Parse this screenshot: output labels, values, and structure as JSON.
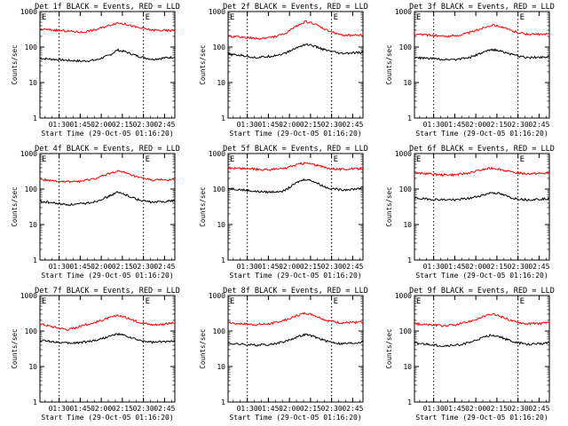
{
  "colors": {
    "events": "#000000",
    "lld": "#ff0000",
    "axis": "#000000",
    "marker": "#000000"
  },
  "chart_data": [
    {
      "type": "line",
      "title": "Det 1f BLACK = Events, RED = LLD",
      "xlabel": "Start Time (29-Oct-05 01:16:20)",
      "ylabel": "Counts/sec",
      "y_scale": "log",
      "ylim": [
        1,
        1000
      ],
      "yticks": [
        "1",
        "10",
        "100",
        "1000"
      ],
      "xticks": [
        "01:30",
        "01:45",
        "02:00",
        "02:15",
        "02:30",
        "02:45"
      ],
      "xlim_minutes": [
        0,
        96
      ],
      "marker_lines_at": [
        "01:30",
        "02:30"
      ],
      "corner_labels": {
        "left": "E",
        "right": "E"
      },
      "x": [
        0,
        10,
        20,
        30,
        40,
        50,
        55,
        60,
        70,
        80,
        90,
        96
      ],
      "series": [
        {
          "name": "Events",
          "color": "#000000",
          "values": [
            48,
            45,
            42,
            40,
            43,
            60,
            82,
            75,
            55,
            45,
            50,
            52
          ]
        },
        {
          "name": "LLD",
          "color": "#ff0000",
          "values": [
            320,
            300,
            280,
            260,
            310,
            420,
            480,
            450,
            350,
            300,
            290,
            295
          ]
        }
      ]
    },
    {
      "type": "line",
      "title": "Det 2f BLACK = Events, RED = LLD",
      "xlabel": "Start Time (29-Oct-05 01:16:20)",
      "ylabel": "Counts/sec",
      "y_scale": "log",
      "ylim": [
        1,
        1000
      ],
      "yticks": [
        "1",
        "10",
        "100",
        "1000"
      ],
      "xticks": [
        "01:30",
        "01:45",
        "02:00",
        "02:15",
        "02:30",
        "02:45"
      ],
      "xlim_minutes": [
        0,
        96
      ],
      "marker_lines_at": [
        "01:30",
        "02:30"
      ],
      "corner_labels": {
        "left": "E",
        "right": "E"
      },
      "x": [
        0,
        10,
        20,
        30,
        40,
        50,
        55,
        60,
        70,
        80,
        90,
        96
      ],
      "series": [
        {
          "name": "Events",
          "color": "#000000",
          "values": [
            62,
            58,
            50,
            55,
            65,
            100,
            120,
            110,
            80,
            65,
            68,
            70
          ]
        },
        {
          "name": "LLD",
          "color": "#ff0000",
          "values": [
            200,
            190,
            170,
            185,
            230,
            420,
            520,
            470,
            300,
            220,
            215,
            220
          ]
        }
      ]
    },
    {
      "type": "line",
      "title": "Det 3f BLACK = Events, RED = LLD",
      "xlabel": "Start Time (29-Oct-05 01:16:20)",
      "ylabel": "Counts/sec",
      "y_scale": "log",
      "ylim": [
        1,
        1000
      ],
      "yticks": [
        "1",
        "10",
        "100",
        "1000"
      ],
      "xticks": [
        "01:30",
        "01:45",
        "02:00",
        "02:15",
        "02:30",
        "02:45"
      ],
      "xlim_minutes": [
        0,
        96
      ],
      "marker_lines_at": [
        "01:30",
        "02:30"
      ],
      "corner_labels": {
        "left": "E",
        "right": "E"
      },
      "x": [
        0,
        10,
        20,
        30,
        40,
        50,
        55,
        60,
        70,
        80,
        90,
        96
      ],
      "series": [
        {
          "name": "Events",
          "color": "#000000",
          "values": [
            50,
            48,
            45,
            45,
            52,
            72,
            85,
            80,
            60,
            50,
            52,
            55
          ]
        },
        {
          "name": "LLD",
          "color": "#ff0000",
          "values": [
            230,
            220,
            200,
            210,
            260,
            360,
            420,
            390,
            280,
            230,
            225,
            230
          ]
        }
      ]
    },
    {
      "type": "line",
      "title": "Det 4f BLACK = Events, RED = LLD",
      "xlabel": "Start Time (29-Oct-05 01:16:20)",
      "ylabel": "Counts/sec",
      "y_scale": "log",
      "ylim": [
        1,
        1000
      ],
      "yticks": [
        "1",
        "10",
        "100",
        "1000"
      ],
      "xticks": [
        "01:30",
        "01:45",
        "02:00",
        "02:15",
        "02:30",
        "02:45"
      ],
      "xlim_minutes": [
        0,
        96
      ],
      "marker_lines_at": [
        "01:30",
        "02:30"
      ],
      "corner_labels": {
        "left": "E",
        "right": "E"
      },
      "x": [
        0,
        10,
        20,
        30,
        40,
        50,
        55,
        60,
        70,
        80,
        90,
        96
      ],
      "series": [
        {
          "name": "Events",
          "color": "#000000",
          "values": [
            45,
            40,
            36,
            38,
            45,
            65,
            80,
            72,
            50,
            42,
            45,
            48
          ]
        },
        {
          "name": "LLD",
          "color": "#ff0000",
          "values": [
            190,
            170,
            160,
            165,
            200,
            280,
            320,
            290,
            210,
            180,
            180,
            185
          ]
        }
      ]
    },
    {
      "type": "line",
      "title": "Det 5f BLACK = Events, RED = LLD",
      "xlabel": "Start Time (29-Oct-05 01:16:20)",
      "ylabel": "Counts/sec",
      "y_scale": "log",
      "ylim": [
        1,
        1000
      ],
      "yticks": [
        "1",
        "10",
        "100",
        "1000"
      ],
      "xticks": [
        "01:30",
        "01:45",
        "02:00",
        "02:15",
        "02:30",
        "02:45"
      ],
      "xlim_minutes": [
        0,
        96
      ],
      "marker_lines_at": [
        "01:30",
        "02:30"
      ],
      "corner_labels": {
        "left": "E",
        "right": "E"
      },
      "x": [
        0,
        10,
        20,
        30,
        40,
        50,
        55,
        60,
        70,
        80,
        90,
        96
      ],
      "series": [
        {
          "name": "Events",
          "color": "#000000",
          "values": [
            105,
            95,
            85,
            82,
            90,
            160,
            190,
            170,
            110,
            95,
            100,
            110
          ]
        },
        {
          "name": "LLD",
          "color": "#ff0000",
          "values": [
            390,
            380,
            360,
            350,
            380,
            500,
            540,
            500,
            390,
            360,
            370,
            380
          ]
        }
      ]
    },
    {
      "type": "line",
      "title": "Det 6f BLACK = Events, RED = LLD",
      "xlabel": "Start Time (29-Oct-05 01:16:20)",
      "ylabel": "Counts/sec",
      "y_scale": "log",
      "ylim": [
        1,
        1000
      ],
      "yticks": [
        "1",
        "10",
        "100",
        "1000"
      ],
      "xticks": [
        "01:30",
        "01:45",
        "02:00",
        "02:15",
        "02:30",
        "02:45"
      ],
      "xlim_minutes": [
        0,
        96
      ],
      "marker_lines_at": [
        "01:30",
        "02:30"
      ],
      "corner_labels": {
        "left": "E",
        "right": "E"
      },
      "x": [
        0,
        10,
        20,
        30,
        40,
        50,
        55,
        60,
        70,
        80,
        90,
        96
      ],
      "series": [
        {
          "name": "Events",
          "color": "#000000",
          "values": [
            55,
            52,
            50,
            50,
            55,
            70,
            80,
            75,
            55,
            50,
            52,
            55
          ]
        },
        {
          "name": "LLD",
          "color": "#ff0000",
          "values": [
            280,
            270,
            250,
            255,
            290,
            360,
            390,
            370,
            290,
            270,
            275,
            280
          ]
        }
      ]
    },
    {
      "type": "line",
      "title": "Det 7f BLACK = Events, RED = LLD",
      "xlabel": "Start Time (29-Oct-05 01:16:20)",
      "ylabel": "Counts/sec",
      "y_scale": "log",
      "ylim": [
        1,
        1000
      ],
      "yticks": [
        "1",
        "10",
        "100",
        "1000"
      ],
      "xticks": [
        "01:30",
        "01:45",
        "02:00",
        "02:15",
        "02:30",
        "02:45"
      ],
      "xlim_minutes": [
        0,
        96
      ],
      "marker_lines_at": [
        "01:30",
        "02:30"
      ],
      "corner_labels": {
        "left": "E",
        "right": "E"
      },
      "x": [
        0,
        10,
        20,
        30,
        40,
        50,
        55,
        60,
        70,
        80,
        90,
        96
      ],
      "series": [
        {
          "name": "Events",
          "color": "#000000",
          "values": [
            55,
            50,
            45,
            48,
            55,
            72,
            82,
            75,
            55,
            48,
            50,
            55
          ]
        },
        {
          "name": "LLD",
          "color": "#ff0000",
          "values": [
            160,
            130,
            110,
            140,
            180,
            240,
            270,
            250,
            180,
            150,
            160,
            170
          ]
        }
      ]
    },
    {
      "type": "line",
      "title": "Det 8f BLACK = Events, RED = LLD",
      "xlabel": "Start Time (29-Oct-05 01:16:20)",
      "ylabel": "Counts/sec",
      "y_scale": "log",
      "ylim": [
        1,
        1000
      ],
      "yticks": [
        "1",
        "10",
        "100",
        "1000"
      ],
      "xticks": [
        "01:30",
        "01:45",
        "02:00",
        "02:15",
        "02:30",
        "02:45"
      ],
      "xlim_minutes": [
        0,
        96
      ],
      "marker_lines_at": [
        "01:30",
        "02:30"
      ],
      "corner_labels": {
        "left": "E",
        "right": "E"
      },
      "x": [
        0,
        10,
        20,
        30,
        40,
        50,
        55,
        60,
        70,
        80,
        90,
        96
      ],
      "series": [
        {
          "name": "Events",
          "color": "#000000",
          "values": [
            45,
            42,
            40,
            42,
            50,
            70,
            80,
            72,
            52,
            44,
            46,
            50
          ]
        },
        {
          "name": "LLD",
          "color": "#ff0000",
          "values": [
            170,
            160,
            150,
            160,
            200,
            280,
            320,
            290,
            200,
            170,
            175,
            180
          ]
        }
      ]
    },
    {
      "type": "line",
      "title": "Det 9f BLACK = Events, RED = LLD",
      "xlabel": "Start Time (29-Oct-05 01:16:20)",
      "ylabel": "Counts/sec",
      "y_scale": "log",
      "ylim": [
        1,
        1000
      ],
      "yticks": [
        "1",
        "10",
        "100",
        "1000"
      ],
      "xticks": [
        "01:30",
        "01:45",
        "02:00",
        "02:15",
        "02:30",
        "02:45"
      ],
      "xlim_minutes": [
        0,
        96
      ],
      "marker_lines_at": [
        "01:30",
        "02:30"
      ],
      "corner_labels": {
        "left": "E",
        "right": "E"
      },
      "x": [
        0,
        10,
        20,
        30,
        40,
        50,
        55,
        60,
        70,
        80,
        90,
        96
      ],
      "series": [
        {
          "name": "Events",
          "color": "#000000",
          "values": [
            45,
            42,
            38,
            40,
            48,
            68,
            78,
            70,
            50,
            42,
            44,
            48
          ]
        },
        {
          "name": "LLD",
          "color": "#ff0000",
          "values": [
            160,
            150,
            140,
            150,
            190,
            260,
            300,
            270,
            190,
            160,
            165,
            170
          ]
        }
      ]
    }
  ]
}
